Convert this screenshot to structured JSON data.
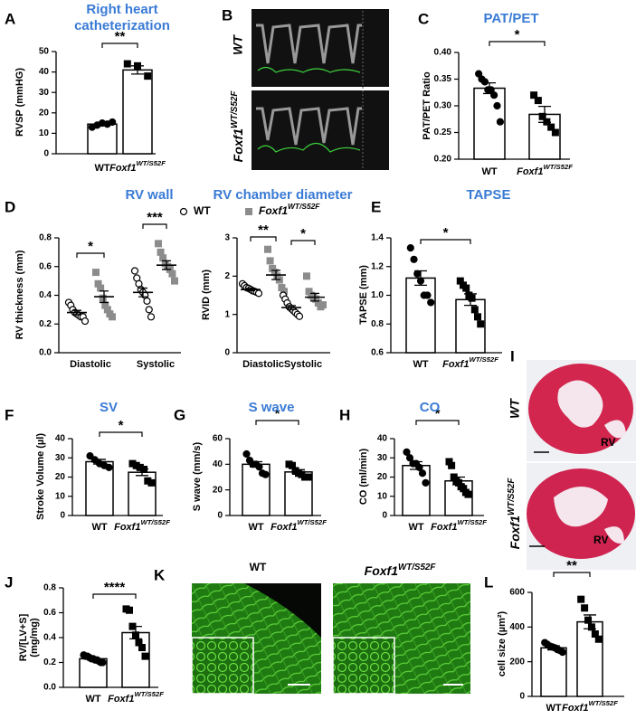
{
  "chart_data": [
    {
      "type": "bar",
      "panel": "A",
      "title": "Right heart catheterization",
      "ylabel": "RVSP (mmHG)",
      "categories": [
        "WT",
        "Foxf1WT/S52F"
      ],
      "values": [
        14.5,
        41
      ],
      "errors": [
        0.8,
        2
      ],
      "points": [
        [
          13,
          14,
          15,
          14.5,
          15.5
        ],
        [
          44,
          43,
          38
        ]
      ],
      "markers": [
        "circle",
        "square"
      ],
      "point_color": "#000000",
      "ylim": [
        0,
        50
      ],
      "yticks": [
        0,
        10,
        20,
        30,
        40,
        50
      ],
      "significance": "**"
    },
    {
      "type": "bar",
      "panel": "C",
      "title": "PAT/PET",
      "ylabel": "PAT/PET Ratio",
      "categories": [
        "WT",
        "Foxf1WT/S52F"
      ],
      "values": [
        0.333,
        0.284
      ],
      "errors": [
        0.01,
        0.015
      ],
      "points": [
        [
          0.36,
          0.35,
          0.345,
          0.33,
          0.33,
          0.32,
          0.3,
          0.27
        ],
        [
          0.32,
          0.31,
          0.28,
          0.27,
          0.26,
          0.25
        ]
      ],
      "markers": [
        "circle",
        "square"
      ],
      "point_color": "#000000",
      "ylim": [
        0.2,
        0.4
      ],
      "yticks": [
        {
          "value": 0.2,
          "label": "0.20"
        },
        0.25,
        {
          "value": 0.3,
          "label": "0.30"
        },
        0.35,
        {
          "value": 0.4,
          "label": "0.40"
        }
      ],
      "significance": "*"
    },
    {
      "type": "scatter",
      "panel": "D",
      "title": "RV wall",
      "ylabel": "RV thickness (mm)",
      "categories": [
        "Diastolic",
        "Systolic"
      ],
      "series": [
        {
          "name": "WT",
          "marker": "circle",
          "color": "#ffffff",
          "values": [
            0.28,
            0.42
          ],
          "errors": [
            0.015,
            0.03
          ],
          "points": [
            [
              0.35,
              0.33,
              0.3,
              0.28,
              0.27,
              0.26,
              0.25,
              0.25,
              0.22
            ],
            [
              0.57,
              0.52,
              0.48,
              0.44,
              0.42,
              0.4,
              0.36,
              0.3,
              0.25
            ]
          ]
        },
        {
          "name": "Foxf1WT/S52F",
          "marker": "square",
          "color": "#8c8c8c",
          "values": [
            0.39,
            0.61
          ],
          "errors": [
            0.04,
            0.03
          ],
          "points": [
            [
              0.56,
              0.48,
              0.45,
              0.38,
              0.33,
              0.3,
              0.27,
              0.25
            ],
            [
              0.76,
              0.7,
              0.66,
              0.62,
              0.6,
              0.58,
              0.55,
              0.5
            ]
          ]
        }
      ],
      "ylim": [
        0,
        0.8
      ],
      "yticks": [
        {
          "value": 0,
          "label": "0.0"
        },
        0.2,
        0.4,
        0.6,
        0.8
      ],
      "significance": [
        "*",
        "***"
      ]
    },
    {
      "type": "scatter",
      "title": "RV chamber diameter",
      "ylabel": "RVID (mm)",
      "categories": [
        "Diastolic",
        "Systolic"
      ],
      "series": [
        {
          "marker": "circle",
          "color": "#ffffff",
          "values": [
            1.65,
            1.18
          ],
          "errors": [
            0.03,
            0.05
          ],
          "points": [
            [
              1.8,
              1.75,
              1.7,
              1.68,
              1.65,
              1.62,
              1.6,
              1.58,
              1.55
            ],
            [
              1.5,
              1.4,
              1.3,
              1.2,
              1.15,
              1.1,
              1.05,
              1.0,
              0.95
            ]
          ]
        },
        {
          "marker": "square",
          "color": "#8c8c8c",
          "values": [
            2.03,
            1.45
          ],
          "errors": [
            0.12,
            0.1
          ],
          "points": [
            [
              2.7,
              2.4,
              2.2,
              2.1,
              2.0,
              1.9,
              1.7,
              1.6
            ],
            [
              2.0,
              1.6,
              1.5,
              1.45,
              1.4,
              1.3,
              1.2,
              1.25
            ]
          ]
        }
      ],
      "ylim": [
        0,
        3
      ],
      "yticks": [
        0,
        1,
        2,
        3
      ],
      "significance": [
        "**",
        "*"
      ]
    },
    {
      "type": "bar",
      "panel": "E",
      "title": "TAPSE",
      "ylabel": "TAPSE (mm)",
      "categories": [
        "WT",
        "Foxf1WT/S52F"
      ],
      "values": [
        1.12,
        0.97
      ],
      "errors": [
        0.05,
        0.04
      ],
      "points": [
        [
          1.33,
          1.25,
          1.15,
          1.1,
          1.0,
          1.0,
          0.95
        ],
        [
          1.1,
          1.07,
          1.05,
          1.0,
          0.98,
          0.9,
          0.85,
          0.8
        ]
      ],
      "markers": [
        "circle",
        "square"
      ],
      "point_color": "#000000",
      "ylim": [
        0.6,
        1.4
      ],
      "yticks": [
        0.6,
        0.8,
        {
          "value": 1,
          "label": "1.0"
        },
        1.2,
        1.4
      ],
      "significance": "*"
    },
    {
      "type": "bar",
      "panel": "F",
      "title": "SV",
      "ylabel": "Stroke Volume (µl)",
      "categories": [
        "WT",
        "Foxf1WT/S52F"
      ],
      "values": [
        28,
        22.5
      ],
      "errors": [
        1.2,
        1.7
      ],
      "points": [
        [
          31,
          29,
          27,
          26,
          25
        ],
        [
          27,
          26,
          25,
          24,
          18,
          17
        ]
      ],
      "markers": [
        "circle",
        "square"
      ],
      "point_color": "#000000",
      "ylim": [
        0,
        40
      ],
      "yticks": [
        0,
        10,
        20,
        30,
        40
      ],
      "significance": "*"
    },
    {
      "type": "bar",
      "panel": "G",
      "title": "S wave",
      "ylabel": "S wave (mm/s)",
      "categories": [
        "WT",
        "Foxf1WT/S52F"
      ],
      "values": [
        40,
        34
      ],
      "errors": [
        2,
        1.8
      ],
      "points": [
        [
          48,
          43,
          40,
          40,
          38,
          33,
          32
        ],
        [
          40,
          39,
          35,
          33,
          32,
          30,
          30
        ]
      ],
      "markers": [
        "circle",
        "square"
      ],
      "point_color": "#000000",
      "ylim": [
        0,
        60
      ],
      "yticks": [
        0,
        20,
        40,
        60
      ],
      "significance": "*"
    },
    {
      "type": "bar",
      "panel": "H",
      "title": "CO",
      "ylabel": "CO (ml/min)",
      "categories": [
        "WT",
        "Foxf1WT/S52F"
      ],
      "values": [
        26,
        18
      ],
      "errors": [
        2,
        2
      ],
      "points": [
        [
          33,
          30,
          27,
          27,
          25,
          22,
          17
        ],
        [
          28,
          26,
          20,
          18,
          17,
          15,
          14,
          12,
          11
        ]
      ],
      "markers": [
        "circle",
        "square"
      ],
      "point_color": "#000000",
      "ylim": [
        0,
        40
      ],
      "yticks": [
        0,
        10,
        20,
        30,
        40
      ],
      "significance": "*"
    },
    {
      "type": "bar",
      "panel": "J",
      "ylabel": "RV/[LV+S] (mg/mg)",
      "categories": [
        "WT",
        "Foxf1WT/S52F"
      ],
      "values": [
        0.23,
        0.44
      ],
      "errors": [
        0.01,
        0.05
      ],
      "points": [
        [
          0.26,
          0.25,
          0.25,
          0.24,
          0.23,
          0.23,
          0.22,
          0.22,
          0.21,
          0.2,
          0.2
        ],
        [
          0.63,
          0.62,
          0.49,
          0.42,
          0.36,
          0.32,
          0.25
        ]
      ],
      "markers": [
        "circle",
        "square"
      ],
      "point_color": "#000000",
      "ylim": [
        0,
        0.8
      ],
      "yticks": [
        {
          "value": 0,
          "label": "0.0"
        },
        0.2,
        0.4,
        0.6,
        0.8
      ],
      "significance": "****"
    },
    {
      "type": "bar",
      "panel": "L",
      "ylabel": "cell size (µm²)",
      "categories": [
        "WT",
        "Foxf1WT/S52F"
      ],
      "values": [
        280,
        430
      ],
      "errors": [
        12,
        40
      ],
      "points": [
        [
          310,
          300,
          290,
          285,
          280,
          270,
          265,
          255
        ],
        [
          560,
          510,
          440,
          400,
          360,
          330
        ]
      ],
      "markers": [
        "circle",
        "square"
      ],
      "point_color": "#000000",
      "ylim": [
        0,
        600
      ],
      "yticks": [
        0,
        200,
        400,
        600
      ],
      "significance": "**"
    }
  ],
  "image_panels": [
    {
      "panel": "B",
      "labels": [
        "WT",
        "Foxf1WT/S52F"
      ]
    },
    {
      "panel": "I",
      "labels": [
        "WT",
        "Foxf1WT/S52F"
      ],
      "region_labels": [
        "RV",
        "RV"
      ]
    },
    {
      "panel": "K",
      "labels": [
        "WT",
        "Foxf1WT/S52F"
      ]
    }
  ]
}
